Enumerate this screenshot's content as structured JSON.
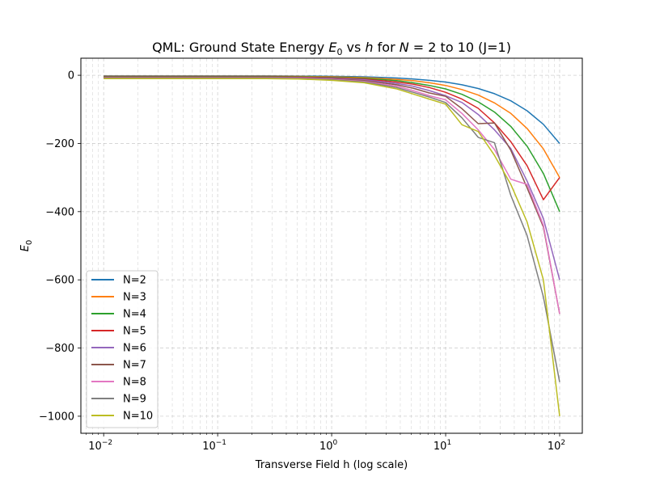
{
  "chart_data": {
    "type": "line",
    "title_parts": {
      "t1": "QML: Ground State Energy ",
      "t2": "E",
      "t3": "0",
      "t4": " vs ",
      "t5": "h",
      "t6": " for ",
      "t7": "N",
      "t8": " = 2 to 10 (J=1)"
    },
    "xlabel": "Transverse Field h (log scale)",
    "ylabel": {
      "main": "E",
      "sub": "0"
    },
    "xscale": "log",
    "xlim": [
      0.00631,
      158
    ],
    "ylim": [
      -1050,
      50
    ],
    "grid": true,
    "legend_position": "lower-left",
    "x_ticks": [
      {
        "value": 0.01,
        "base": "10",
        "exp": "−2"
      },
      {
        "value": 0.1,
        "base": "10",
        "exp": "−1"
      },
      {
        "value": 1,
        "base": "10",
        "exp": "0"
      },
      {
        "value": 10,
        "base": "10",
        "exp": "1"
      },
      {
        "value": 100,
        "base": "10",
        "exp": "2"
      }
    ],
    "y_ticks": [
      {
        "value": 0,
        "label": "0"
      },
      {
        "value": -200,
        "label": "−200"
      },
      {
        "value": -400,
        "label": "−400"
      },
      {
        "value": -600,
        "label": "−600"
      },
      {
        "value": -800,
        "label": "−800"
      },
      {
        "value": -1000,
        "label": "−1000"
      }
    ],
    "x": [
      0.01,
      0.0193,
      0.0373,
      0.072,
      0.139,
      0.268,
      0.518,
      1.0,
      1.93,
      3.73,
      5.18,
      7.2,
      10.0,
      13.9,
      19.3,
      26.8,
      37.3,
      51.8,
      72.0,
      100
    ],
    "series": [
      {
        "name": "N=2",
        "color": "#1f77b4",
        "values": [
          -2,
          -2,
          -2,
          -2,
          -2,
          -2,
          -2.3,
          -3,
          -4.5,
          -8,
          -11,
          -15,
          -20,
          -28,
          -39,
          -54,
          -75,
          -104,
          -144,
          -200
        ]
      },
      {
        "name": "N=3",
        "color": "#ff7f0e",
        "values": [
          -3,
          -3,
          -3,
          -3,
          -3,
          -3,
          -3.4,
          -4.5,
          -7,
          -12,
          -16,
          -22,
          -30,
          -42,
          -58,
          -81,
          -112,
          -156,
          -216,
          -300
        ]
      },
      {
        "name": "N=4",
        "color": "#2ca02c",
        "values": [
          -4,
          -4,
          -4,
          -4,
          -4,
          -4,
          -4.6,
          -6,
          -9,
          -16,
          -22,
          -30,
          -40,
          -56,
          -78,
          -108,
          -150,
          -208,
          -288,
          -400
        ]
      },
      {
        "name": "N=5",
        "color": "#d62728",
        "values": [
          -5,
          -5,
          -5,
          -5,
          -5,
          -5,
          -5.7,
          -7.5,
          -11,
          -20,
          -26,
          -36,
          -50,
          -70,
          -97,
          -140,
          -195,
          -265,
          -365,
          -300
        ]
      },
      {
        "name": "N=6",
        "color": "#9467bd",
        "values": [
          -6,
          -6,
          -6,
          -6,
          -6,
          -6,
          -6.8,
          -9,
          -13,
          -24,
          -32,
          -45,
          -60,
          -80,
          -115,
          -160,
          -215,
          -310,
          -420,
          -600
        ]
      },
      {
        "name": "N=7",
        "color": "#8c564b",
        "values": [
          -7,
          -7,
          -7,
          -7,
          -7,
          -7,
          -8,
          -10.5,
          -16,
          -28,
          -38,
          -52,
          -62,
          -98,
          -142,
          -140,
          -220,
          -330,
          -445,
          -700
        ]
      },
      {
        "name": "N=8",
        "color": "#e377c2",
        "values": [
          -8,
          -8,
          -8,
          -8,
          -8,
          -8,
          -9,
          -12,
          -18,
          -32,
          -45,
          -60,
          -72,
          -112,
          -160,
          -218,
          -305,
          -320,
          -440,
          -700
        ]
      },
      {
        "name": "N=9",
        "color": "#7f7f7f",
        "values": [
          -9,
          -9,
          -9,
          -9,
          -9,
          -9,
          -10,
          -13.5,
          -20,
          -36,
          -50,
          -64,
          -80,
          -125,
          -182,
          -198,
          -352,
          -470,
          -650,
          -900
        ]
      },
      {
        "name": "N=10",
        "color": "#bcbd22",
        "values": [
          -10,
          -10,
          -10,
          -10,
          -10,
          -10,
          -11,
          -15,
          -22,
          -40,
          -55,
          -70,
          -85,
          -145,
          -165,
          -235,
          -320,
          -430,
          -600,
          -1000
        ]
      }
    ]
  }
}
